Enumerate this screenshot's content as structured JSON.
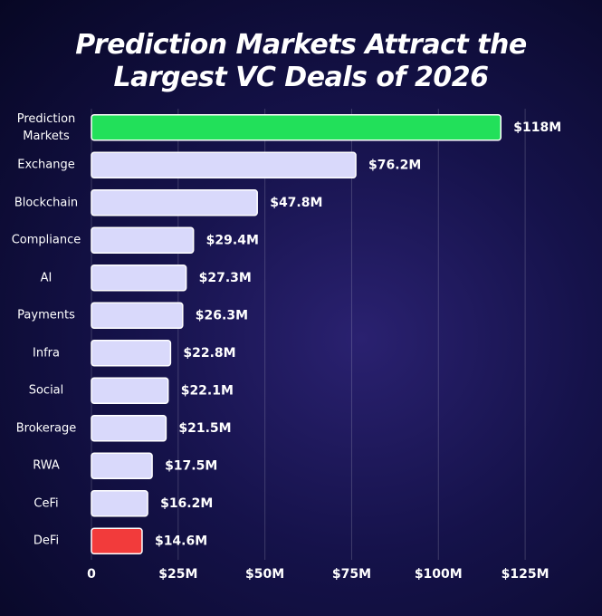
{
  "chart_data": {
    "type": "bar",
    "orientation": "horizontal",
    "title": "Prediction Markets Attract the Largest VC Deals of 2026",
    "categories": [
      "Prediction Markets",
      "Exchange",
      "Blockchain",
      "Compliance",
      "AI",
      "Payments",
      "Infra",
      "Social",
      "Brokerage",
      "RWA",
      "CeFi",
      "DeFi"
    ],
    "values": [
      118,
      76.2,
      47.8,
      29.4,
      27.3,
      26.3,
      22.8,
      22.1,
      21.5,
      17.5,
      16.2,
      14.6
    ],
    "value_labels": [
      "$118M",
      "$76.2M",
      "$47.8M",
      "$29.4M",
      "$27.3M",
      "$26.3M",
      "$22.8M",
      "$22.1M",
      "$21.5M",
      "$17.5M",
      "$16.2M",
      "$14.6M"
    ],
    "colors": [
      "#22e05a",
      "#d9d9fb",
      "#d9d9fb",
      "#d9d9fb",
      "#d9d9fb",
      "#d9d9fb",
      "#d9d9fb",
      "#d9d9fb",
      "#d9d9fb",
      "#d9d9fb",
      "#d9d9fb",
      "#f23b3b"
    ],
    "xlim": [
      0,
      137.5
    ],
    "xticks": [
      0,
      {
        "value": 25,
        "label": "$25M"
      },
      {
        "value": 50,
        "label": "$50M"
      },
      {
        "value": 75,
        "label": "$75M"
      },
      {
        "value": 100,
        "label": "$100M"
      },
      {
        "value": 125,
        "label": "$125M"
      }
    ],
    "grid": true
  }
}
